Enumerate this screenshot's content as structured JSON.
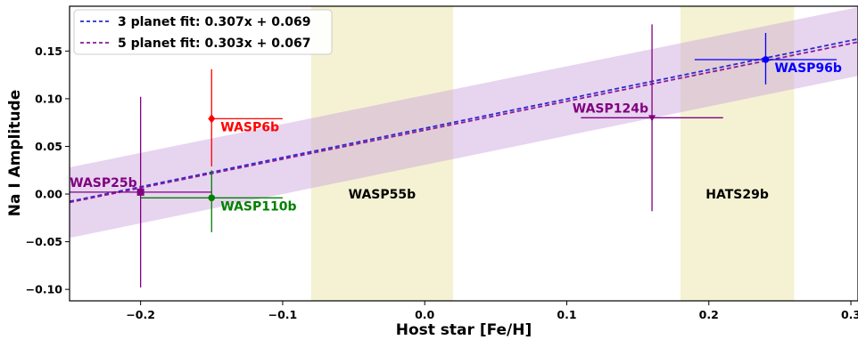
{
  "chart_data": {
    "type": "scatter",
    "xlabel": "Host star [Fe/H]",
    "ylabel": "Na I Amplitude",
    "xlim": [
      -0.25,
      0.305
    ],
    "ylim": [
      -0.112,
      0.197
    ],
    "xticks": [
      -0.2,
      -0.1,
      0.0,
      0.1,
      0.2,
      0.3
    ],
    "xtick_labels": [
      "−0.2",
      "−0.1",
      "0.0",
      "0.1",
      "0.2",
      "0.3"
    ],
    "yticks": [
      -0.1,
      -0.05,
      0.0,
      0.05,
      0.1,
      0.15
    ],
    "ytick_labels": [
      "−0.10",
      "−0.05",
      "0.00",
      "0.05",
      "0.10",
      "0.15"
    ],
    "grid": false,
    "legend_position": "upper-left",
    "series": [
      {
        "name": "3 planet fit: 0.307x + 0.069",
        "kind": "fit",
        "slope": 0.307,
        "intercept": 0.069,
        "color": "#2b2bcc",
        "dash": true
      },
      {
        "name": "5 planet fit: 0.303x + 0.067",
        "kind": "fit",
        "slope": 0.303,
        "intercept": 0.067,
        "color": "#8a1a9b",
        "dash": true
      }
    ],
    "confidence_band": {
      "color": "#c9a0dc",
      "upper_at_xmin": 0.028,
      "lower_at_xmin": -0.046,
      "upper_at_xmax": 0.196,
      "lower_at_xmax": 0.124
    },
    "highlight_bands": [
      {
        "x": [
          -0.08,
          0.02
        ],
        "label": "WASP55b",
        "label_y": 0.0,
        "color": "#f4f2d2"
      },
      {
        "x": [
          0.18,
          0.26
        ],
        "label": "HATS29b",
        "label_y": 0.0,
        "color": "#f4f2d2"
      }
    ],
    "points": [
      {
        "label": "WASP6b",
        "x": -0.15,
        "y": 0.079,
        "xerr": [
          0.0,
          0.05
        ],
        "yerr": [
          0.05,
          0.052
        ],
        "color": "#ff0000",
        "marker": "diamond",
        "label_side": "right"
      },
      {
        "label": "WASP110b",
        "x": -0.15,
        "y": -0.004,
        "xerr": [
          0.05,
          0.05
        ],
        "yerr": [
          0.036,
          0.029
        ],
        "color": "#008000",
        "marker": "circle",
        "label_side": "right"
      },
      {
        "label": "WASP25b",
        "x": -0.2,
        "y": 0.002,
        "xerr": [
          0.05,
          0.05
        ],
        "yerr": [
          0.1,
          0.1
        ],
        "color": "#800080",
        "marker": "square",
        "label_side": "left"
      },
      {
        "label": "WASP124b",
        "x": 0.16,
        "y": 0.08,
        "xerr": [
          0.05,
          0.05
        ],
        "yerr": [
          0.098,
          0.098
        ],
        "color": "#800080",
        "marker": "triangle",
        "label_side": "left"
      },
      {
        "label": "WASP96b",
        "x": 0.24,
        "y": 0.141,
        "xerr": [
          0.05,
          0.05
        ],
        "yerr": [
          0.026,
          0.028
        ],
        "color": "#0000ff",
        "marker": "circle",
        "label_side": "right"
      }
    ]
  }
}
